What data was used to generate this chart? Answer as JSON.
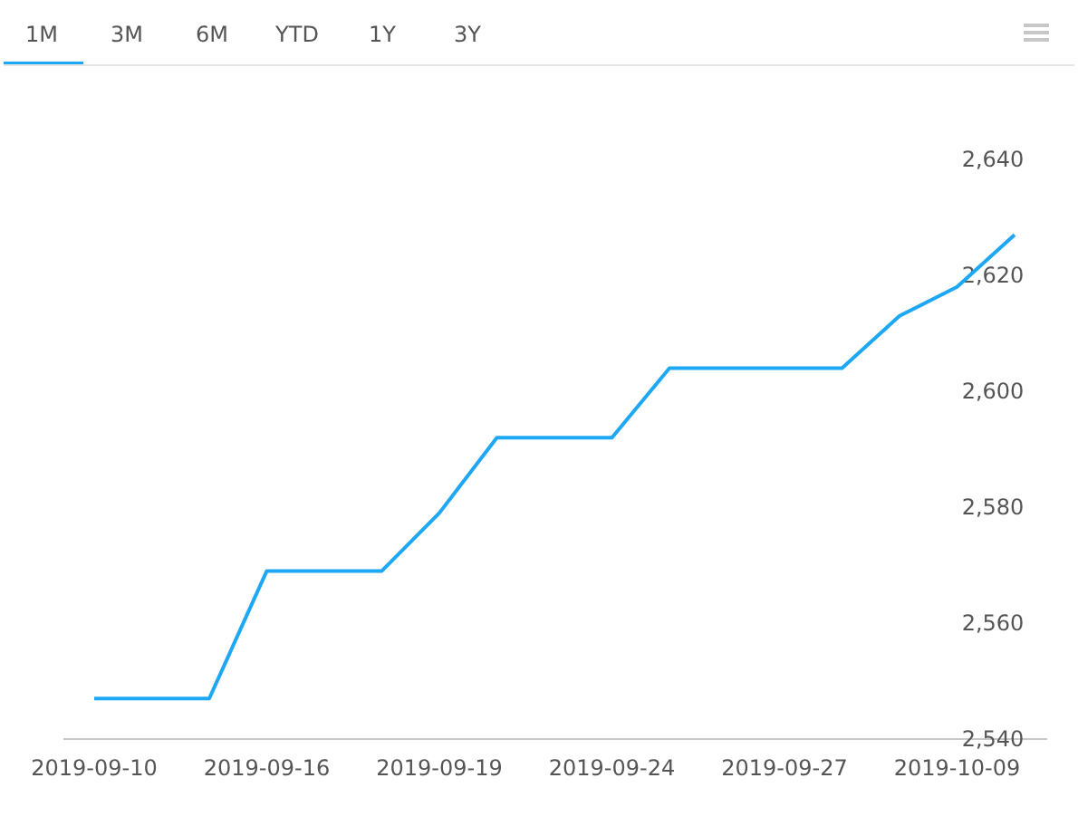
{
  "chart_data": {
    "type": "line",
    "categories": [
      "2019-09-10",
      null,
      null,
      "2019-09-16",
      null,
      null,
      "2019-09-19",
      null,
      null,
      "2019-09-24",
      null,
      null,
      "2019-09-27",
      null,
      null,
      "2019-10-09",
      null
    ],
    "series": [
      {
        "color": "#1ea7f5",
        "values": [
          2547,
          2547,
          2547,
          2569,
          2569,
          2569,
          2579,
          2592,
          2592,
          2592,
          2604,
          2604,
          2604,
          2604,
          2613,
          2618,
          2627
        ]
      }
    ],
    "ylim": [
      2540,
      2640
    ],
    "yticks": [
      {
        "value": 2540,
        "label": "2,540"
      },
      {
        "value": 2560,
        "label": "2,560"
      },
      {
        "value": 2580,
        "label": "2,580"
      },
      {
        "value": 2600,
        "label": "2,600"
      },
      {
        "value": 2620,
        "label": "2,620"
      },
      {
        "value": 2640,
        "label": "2,640"
      }
    ],
    "grid": false,
    "marker": "none",
    "line_style": "solid",
    "annotations": [
      "1M",
      "3M",
      "6M",
      "YTD",
      "1Y",
      "3Y"
    ]
  }
}
